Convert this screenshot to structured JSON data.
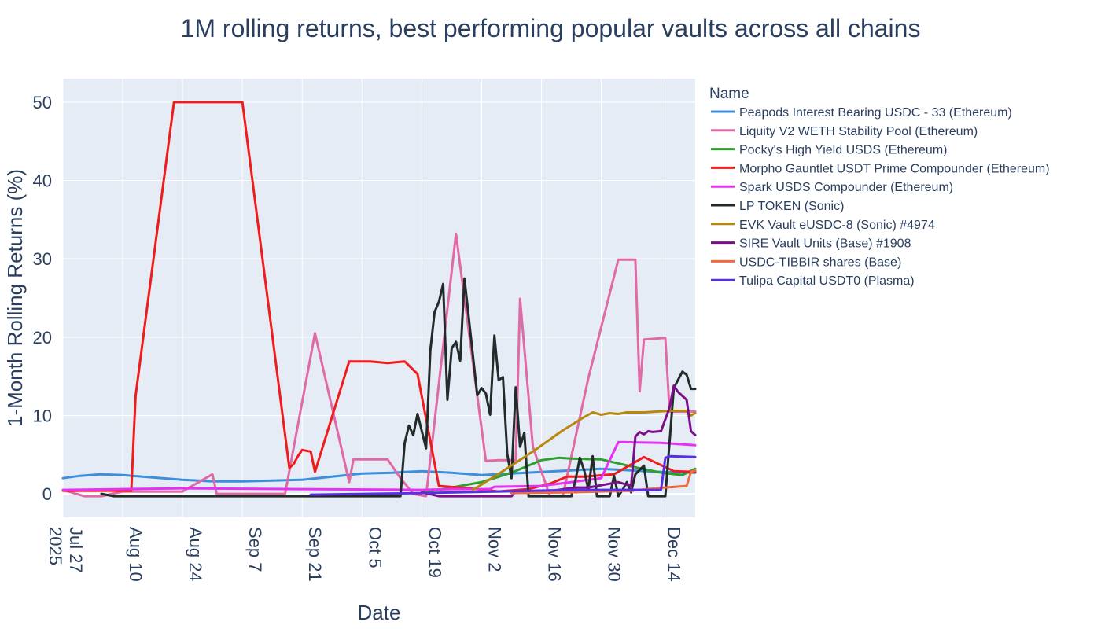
{
  "chart_data": {
    "type": "line",
    "title": "1M rolling returns, best performing popular vaults across all chains",
    "xlabel": "Date",
    "ylabel": "1-Month Rolling Returns (%)",
    "legend_title": "Name",
    "legend_position": "right",
    "grid": true,
    "plot_bgcolor": "#e5ecf6",
    "x_range": [
      "2025-07-27",
      "2025-12-22"
    ],
    "ylim": [
      -3,
      53
    ],
    "y_ticks": [
      0,
      10,
      20,
      30,
      40,
      50
    ],
    "x_ticks": [
      {
        "date": "2025-07-27",
        "label": "Jul 27",
        "year_label": "2025"
      },
      {
        "date": "2025-08-10",
        "label": "Aug 10"
      },
      {
        "date": "2025-08-24",
        "label": "Aug 24"
      },
      {
        "date": "2025-09-07",
        "label": "Sep 7"
      },
      {
        "date": "2025-09-21",
        "label": "Sep 21"
      },
      {
        "date": "2025-10-05",
        "label": "Oct 5"
      },
      {
        "date": "2025-10-19",
        "label": "Oct 19"
      },
      {
        "date": "2025-11-02",
        "label": "Nov 2"
      },
      {
        "date": "2025-11-16",
        "label": "Nov 16"
      },
      {
        "date": "2025-11-30",
        "label": "Nov 30"
      },
      {
        "date": "2025-12-14",
        "label": "Dec 14"
      }
    ],
    "series": [
      {
        "name": "Peapods Interest Bearing USDC - 33 (Ethereum)",
        "color": "#3b8fdb",
        "points": [
          [
            "2025-07-27",
            2.0
          ],
          [
            "2025-07-31",
            2.3
          ],
          [
            "2025-08-05",
            2.5
          ],
          [
            "2025-08-10",
            2.4
          ],
          [
            "2025-08-17",
            2.1
          ],
          [
            "2025-08-24",
            1.8
          ],
          [
            "2025-08-31",
            1.6
          ],
          [
            "2025-09-07",
            1.6
          ],
          [
            "2025-09-14",
            1.7
          ],
          [
            "2025-09-21",
            1.8
          ],
          [
            "2025-09-28",
            2.2
          ],
          [
            "2025-10-05",
            2.6
          ],
          [
            "2025-10-12",
            2.7
          ],
          [
            "2025-10-19",
            2.9
          ],
          [
            "2025-10-26",
            2.7
          ],
          [
            "2025-11-02",
            2.4
          ],
          [
            "2025-11-09",
            2.6
          ],
          [
            "2025-11-16",
            2.8
          ],
          [
            "2025-11-23",
            3.0
          ],
          [
            "2025-11-30",
            3.2
          ],
          [
            "2025-12-07",
            3.0
          ],
          [
            "2025-12-14",
            2.8
          ],
          [
            "2025-12-22",
            2.7
          ]
        ]
      },
      {
        "name": "Liquity V2 WETH Stability Pool (Ethereum)",
        "color": "#e06aa5",
        "points": [
          [
            "2025-07-27",
            0.5
          ],
          [
            "2025-08-01",
            -0.3
          ],
          [
            "2025-08-05",
            -0.3
          ],
          [
            "2025-08-10",
            0.3
          ],
          [
            "2025-08-24",
            0.3
          ],
          [
            "2025-08-31",
            2.5
          ],
          [
            "2025-09-01",
            0
          ],
          [
            "2025-09-14",
            0
          ],
          [
            "2025-09-17",
            0
          ],
          [
            "2025-09-24",
            20.5
          ],
          [
            "2025-10-02",
            1.5
          ],
          [
            "2025-10-03",
            4.4
          ],
          [
            "2025-10-11",
            4.4
          ],
          [
            "2025-10-14",
            2.0
          ],
          [
            "2025-10-17",
            0
          ],
          [
            "2025-10-20",
            -0.3
          ],
          [
            "2025-10-27",
            33.2
          ],
          [
            "2025-11-03",
            4.2
          ],
          [
            "2025-11-06",
            4.3
          ],
          [
            "2025-11-10",
            4.3
          ],
          [
            "2025-11-11",
            24.9
          ],
          [
            "2025-11-14",
            6.0
          ],
          [
            "2025-11-18",
            -0.3
          ],
          [
            "2025-11-21",
            -0.3
          ],
          [
            "2025-11-27",
            14.8
          ],
          [
            "2025-12-04",
            29.9
          ],
          [
            "2025-12-08",
            29.9
          ],
          [
            "2025-12-09",
            13.1
          ],
          [
            "2025-12-10",
            19.7
          ],
          [
            "2025-12-15",
            19.9
          ],
          [
            "2025-12-16",
            10.5
          ],
          [
            "2025-12-22",
            10.5
          ]
        ]
      },
      {
        "name": "Pocky's High Yield USDS (Ethereum)",
        "color": "#2ca02c",
        "points": [
          [
            "2025-10-19",
            0.2
          ],
          [
            "2025-10-26",
            0.8
          ],
          [
            "2025-11-02",
            1.5
          ],
          [
            "2025-11-09",
            2.7
          ],
          [
            "2025-11-16",
            4.3
          ],
          [
            "2025-11-20",
            4.6
          ],
          [
            "2025-11-23",
            4.5
          ],
          [
            "2025-11-30",
            4.4
          ],
          [
            "2025-12-07",
            3.5
          ],
          [
            "2025-12-14",
            2.7
          ],
          [
            "2025-12-19",
            2.4
          ],
          [
            "2025-12-22",
            3.2
          ]
        ]
      },
      {
        "name": "Morpho Gauntlet USDT Prime Compounder (Ethereum)",
        "color": "#f01b1b",
        "points": [
          [
            "2025-07-27",
            0.4
          ],
          [
            "2025-08-10",
            0.4
          ],
          [
            "2025-08-12",
            0.4
          ],
          [
            "2025-08-13",
            12.5
          ],
          [
            "2025-08-22",
            50
          ],
          [
            "2025-09-07",
            50
          ],
          [
            "2025-09-18",
            3.3
          ],
          [
            "2025-09-19",
            3.8
          ],
          [
            "2025-09-20",
            4.8
          ],
          [
            "2025-09-21",
            5.6
          ],
          [
            "2025-09-23",
            5.4
          ],
          [
            "2025-09-24",
            2.8
          ],
          [
            "2025-10-02",
            16.9
          ],
          [
            "2025-10-07",
            16.9
          ],
          [
            "2025-10-11",
            16.7
          ],
          [
            "2025-10-15",
            16.9
          ],
          [
            "2025-10-18",
            15.3
          ],
          [
            "2025-10-23",
            1.0
          ],
          [
            "2025-10-30",
            0.7
          ],
          [
            "2025-11-06",
            0.3
          ],
          [
            "2025-11-13",
            0.6
          ],
          [
            "2025-11-18",
            1.3
          ],
          [
            "2025-11-22",
            2.2
          ],
          [
            "2025-11-26",
            2.2
          ],
          [
            "2025-12-03",
            2.5
          ],
          [
            "2025-12-10",
            4.7
          ],
          [
            "2025-12-17",
            2.9
          ],
          [
            "2025-12-22",
            2.8
          ]
        ]
      },
      {
        "name": "Spark USDS Compounder (Ethereum)",
        "color": "#e631f5",
        "points": [
          [
            "2025-07-27",
            0.5
          ],
          [
            "2025-08-24",
            0.7
          ],
          [
            "2025-09-21",
            0.6
          ],
          [
            "2025-10-19",
            0.5
          ],
          [
            "2025-10-26",
            0.6
          ],
          [
            "2025-11-04",
            0.6
          ],
          [
            "2025-11-05",
            0.9
          ],
          [
            "2025-11-16",
            1.0
          ],
          [
            "2025-11-30",
            2.0
          ],
          [
            "2025-12-04",
            6.6
          ],
          [
            "2025-12-14",
            6.5
          ],
          [
            "2025-12-22",
            6.2
          ]
        ]
      },
      {
        "name": "LP TOKEN (Sonic)",
        "color": "#222a2a",
        "points": [
          [
            "2025-08-05",
            0
          ],
          [
            "2025-08-08",
            -0.3
          ],
          [
            "2025-10-14",
            -0.3
          ],
          [
            "2025-10-15",
            6.5
          ],
          [
            "2025-10-16",
            8.7
          ],
          [
            "2025-10-17",
            7.5
          ],
          [
            "2025-10-18",
            10.2
          ],
          [
            "2025-10-20",
            5.8
          ],
          [
            "2025-10-21",
            18.3
          ],
          [
            "2025-10-22",
            23.2
          ],
          [
            "2025-10-23",
            24.5
          ],
          [
            "2025-10-24",
            26.8
          ],
          [
            "2025-10-25",
            12.0
          ],
          [
            "2025-10-26",
            18.6
          ],
          [
            "2025-10-27",
            19.4
          ],
          [
            "2025-10-28",
            17.0
          ],
          [
            "2025-10-29",
            27.5
          ],
          [
            "2025-11-01",
            12.6
          ],
          [
            "2025-11-02",
            13.5
          ],
          [
            "2025-11-03",
            12.8
          ],
          [
            "2025-11-04",
            10.1
          ],
          [
            "2025-11-05",
            20.2
          ],
          [
            "2025-11-06",
            14.5
          ],
          [
            "2025-11-07",
            14.9
          ],
          [
            "2025-11-08",
            5.1
          ],
          [
            "2025-11-09",
            2.0
          ],
          [
            "2025-11-10",
            13.6
          ],
          [
            "2025-11-11",
            6.0
          ],
          [
            "2025-11-12",
            7.8
          ],
          [
            "2025-11-13",
            -0.3
          ],
          [
            "2025-11-23",
            -0.3
          ],
          [
            "2025-11-24",
            1.8
          ],
          [
            "2025-11-25",
            4.6
          ],
          [
            "2025-11-26",
            3.0
          ],
          [
            "2025-11-27",
            0.5
          ],
          [
            "2025-11-28",
            4.8
          ],
          [
            "2025-11-29",
            -0.3
          ],
          [
            "2025-12-02",
            -0.3
          ],
          [
            "2025-12-03",
            2.3
          ],
          [
            "2025-12-04",
            -0.3
          ],
          [
            "2025-12-05",
            0.5
          ],
          [
            "2025-12-06",
            1.5
          ],
          [
            "2025-12-07",
            0.2
          ],
          [
            "2025-12-08",
            2.5
          ],
          [
            "2025-12-10",
            3.6
          ],
          [
            "2025-12-11",
            -0.3
          ],
          [
            "2025-12-15",
            -0.3
          ],
          [
            "2025-12-17",
            13.5
          ],
          [
            "2025-12-19",
            15.6
          ],
          [
            "2025-12-20",
            15.2
          ],
          [
            "2025-12-21",
            13.4
          ],
          [
            "2025-12-22",
            13.4
          ]
        ]
      },
      {
        "name": "EVK Vault eUSDC-8 (Sonic) #4974",
        "color": "#b8860b",
        "points": [
          [
            "2025-10-31",
            0.5
          ],
          [
            "2025-11-07",
            2.9
          ],
          [
            "2025-11-14",
            5.4
          ],
          [
            "2025-11-21",
            8.1
          ],
          [
            "2025-11-26",
            9.8
          ],
          [
            "2025-11-28",
            10.4
          ],
          [
            "2025-11-30",
            10.1
          ],
          [
            "2025-12-02",
            10.3
          ],
          [
            "2025-12-04",
            10.2
          ],
          [
            "2025-12-06",
            10.4
          ],
          [
            "2025-12-10",
            10.4
          ],
          [
            "2025-12-16",
            10.6
          ],
          [
            "2025-12-20",
            10.6
          ],
          [
            "2025-12-21",
            10.0
          ],
          [
            "2025-12-22",
            10.3
          ]
        ]
      },
      {
        "name": "SIRE Vault Units (Base) #1908",
        "color": "#7a0f8a",
        "points": [
          [
            "2025-10-19",
            0.2
          ],
          [
            "2025-10-23",
            -0.3
          ],
          [
            "2025-11-09",
            -0.3
          ],
          [
            "2025-11-10",
            0.3
          ],
          [
            "2025-11-16",
            0.2
          ],
          [
            "2025-11-24",
            0.8
          ],
          [
            "2025-11-27",
            0.8
          ],
          [
            "2025-12-04",
            1.5
          ],
          [
            "2025-12-07",
            1.0
          ],
          [
            "2025-12-08",
            7.3
          ],
          [
            "2025-12-09",
            7.9
          ],
          [
            "2025-12-10",
            7.6
          ],
          [
            "2025-12-11",
            8.0
          ],
          [
            "2025-12-12",
            7.9
          ],
          [
            "2025-12-14",
            8.0
          ],
          [
            "2025-12-16",
            11.0
          ],
          [
            "2025-12-17",
            13.8
          ],
          [
            "2025-12-18",
            13.0
          ],
          [
            "2025-12-20",
            12.0
          ],
          [
            "2025-12-21",
            8.0
          ],
          [
            "2025-12-22",
            7.5
          ]
        ]
      },
      {
        "name": "USDC-TIBBIR shares (Base)",
        "color": "#ef6b3f",
        "points": [
          [
            "2025-11-09",
            0.1
          ],
          [
            "2025-11-23",
            0.2
          ],
          [
            "2025-12-07",
            0.4
          ],
          [
            "2025-12-15",
            0.8
          ],
          [
            "2025-12-20",
            1.0
          ],
          [
            "2025-12-21",
            2.8
          ],
          [
            "2025-12-22",
            3.0
          ]
        ]
      },
      {
        "name": "Tulipa Capital USDT0 (Plasma)",
        "color": "#5a2ee6",
        "points": [
          [
            "2025-09-23",
            -0.1
          ],
          [
            "2025-10-19",
            0.1
          ],
          [
            "2025-11-06",
            0.3
          ],
          [
            "2025-11-23",
            0.5
          ],
          [
            "2025-12-14",
            0.5
          ],
          [
            "2025-12-15",
            4.6
          ],
          [
            "2025-12-16",
            4.8
          ],
          [
            "2025-12-22",
            4.7
          ]
        ]
      }
    ]
  }
}
